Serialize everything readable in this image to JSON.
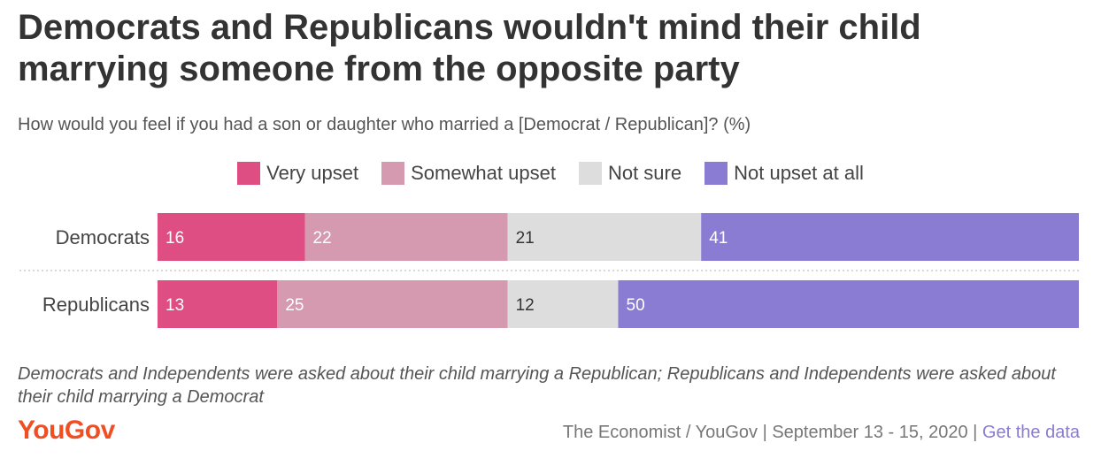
{
  "title": "Democrats and Republicans wouldn't mind their child marrying someone from the opposite party",
  "subtitle": "How would you feel if you had a son or daughter who married a [Democrat / Republican]? (%)",
  "note": "Democrats and Independents were asked about their child marrying a Republican; Republicans and Independents were asked about their child marrying a Democrat",
  "brand": "YouGov",
  "source": {
    "text": "The Economist / YouGov | September 13 - 15, 2020 | ",
    "link": "Get the data"
  },
  "colors": {
    "very_upset": "#de4e82",
    "somewhat_upset": "#d599b0",
    "not_sure": "#dddddd",
    "not_upset_at_all": "#8a7cd2"
  },
  "chart_data": {
    "type": "bar",
    "orientation": "horizontal",
    "stacked": true,
    "categories": [
      "Democrats",
      "Republicans"
    ],
    "series": [
      {
        "name": "Very upset",
        "values": [
          16,
          13
        ],
        "color": "#de4e82",
        "label_color": "#ffffff"
      },
      {
        "name": "Somewhat upset",
        "values": [
          22,
          25
        ],
        "color": "#d599b0",
        "label_color": "#ffffff"
      },
      {
        "name": "Not sure",
        "values": [
          21,
          12
        ],
        "color": "#dddddd",
        "label_color": "#333333"
      },
      {
        "name": "Not upset at all",
        "values": [
          41,
          50
        ],
        "color": "#8a7cd2",
        "label_color": "#ffffff"
      }
    ],
    "xlim": [
      0,
      100
    ],
    "legend": "top-center",
    "grid": false
  }
}
